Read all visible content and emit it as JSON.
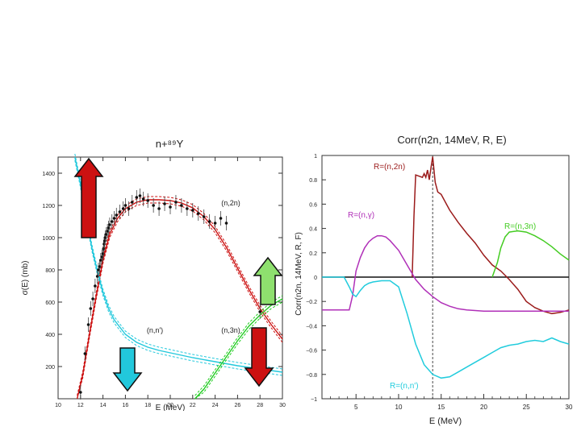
{
  "chart_data": [
    {
      "type": "line",
      "title": "n+⁸⁹Y",
      "xlabel": "E (MeV)",
      "ylabel": "σ(E) (mb)",
      "xlim": [
        10,
        30
      ],
      "ylim": [
        0,
        1500
      ],
      "xticks": [
        "10",
        "12",
        "14",
        "16",
        "18",
        "20",
        "22",
        "24",
        "26",
        "28",
        "30"
      ],
      "yticks": [
        "200",
        "400",
        "600",
        "800",
        "1000",
        "1200",
        "1400"
      ],
      "annotations": [
        "(n,2n)",
        "(n,n')",
        "(n,3n)"
      ],
      "series": [
        {
          "name": "(n,2n)",
          "color": "#cc1111",
          "x": [
            11.7,
            12.2,
            12.8,
            13.4,
            14.0,
            14.6,
            15.3,
            16.0,
            17.0,
            18.0,
            19.0,
            20.0,
            21.0,
            22.0,
            23.0,
            24.0,
            25.0,
            26.0,
            27.0,
            28.0,
            29.0,
            30.0
          ],
          "y": [
            0,
            150,
            400,
            640,
            860,
            1020,
            1120,
            1180,
            1220,
            1235,
            1235,
            1230,
            1215,
            1185,
            1130,
            1050,
            940,
            810,
            680,
            560,
            460,
            370
          ]
        },
        {
          "name": "(n,n')",
          "color": "#22c8dc",
          "x": [
            11.5,
            12.0,
            12.5,
            13.0,
            13.5,
            14.0,
            14.5,
            15.0,
            16.0,
            17.0,
            18.0,
            19.0,
            20.0,
            22.0,
            24.0,
            26.0,
            28.0,
            30.0
          ],
          "y": [
            1500,
            1330,
            1130,
            940,
            790,
            660,
            560,
            490,
            400,
            350,
            320,
            300,
            285,
            255,
            230,
            205,
            185,
            165
          ]
        },
        {
          "name": "(n,3n)",
          "color": "#22cc22",
          "x": [
            22.2,
            23.0,
            24.0,
            25.0,
            26.0,
            27.0,
            28.0,
            29.0,
            30.0
          ],
          "y": [
            0,
            60,
            160,
            260,
            360,
            450,
            520,
            580,
            620
          ]
        }
      ],
      "points": {
        "color": "#111111",
        "x": [
          12.0,
          12.4,
          12.7,
          12.9,
          13.1,
          13.3,
          13.5,
          13.6,
          13.7,
          13.8,
          13.9,
          14.0,
          14.05,
          14.1,
          14.15,
          14.2,
          14.3,
          14.4,
          14.5,
          14.6,
          14.8,
          15.0,
          15.2,
          15.5,
          15.8,
          16.0,
          16.3,
          16.6,
          17.0,
          17.3,
          17.6,
          18.0,
          18.5,
          19.0,
          19.5,
          20.0,
          20.5,
          21.0,
          21.5,
          22.0,
          22.5,
          23.0,
          23.5,
          24.0,
          24.5,
          25.0,
          28.0
        ],
        "y": [
          40,
          280,
          460,
          560,
          620,
          700,
          760,
          800,
          820,
          860,
          880,
          900,
          930,
          960,
          980,
          1000,
          1020,
          1040,
          1060,
          1080,
          1100,
          1120,
          1140,
          1160,
          1180,
          1200,
          1180,
          1220,
          1250,
          1260,
          1240,
          1230,
          1200,
          1180,
          1210,
          1190,
          1220,
          1200,
          1180,
          1170,
          1150,
          1130,
          1100,
          1090,
          1120,
          1090,
          540
        ]
      },
      "arrows": [
        {
          "direction": "up",
          "color": "#cc1111"
        },
        {
          "direction": "down",
          "color": "#22c8dc"
        },
        {
          "direction": "up",
          "color": "#8ee06e"
        },
        {
          "direction": "down",
          "color": "#cc1111"
        }
      ]
    },
    {
      "type": "line",
      "title": "Corr(n2n, 14MeV, R, E)",
      "xlabel": "E (MeV)",
      "ylabel": "Corr(n2n, 14MeV, R, F)",
      "xlim": [
        1,
        30
      ],
      "ylim": [
        -1,
        1
      ],
      "xticks": [
        "5",
        "10",
        "15",
        "20",
        "25",
        "30"
      ],
      "yticks": [
        "1",
        "0.8",
        "0.6",
        "0.4",
        "0.2",
        "0",
        "−0.2",
        "−0.4",
        "−0.6",
        "−0.8",
        "−1"
      ],
      "vline_x": 14,
      "hline_y": 0,
      "series": [
        {
          "name": "R=(n,2n)",
          "color": "#9b1b1b",
          "x": [
            11.6,
            11.8,
            12.0,
            12.8,
            13.0,
            13.2,
            13.4,
            13.6,
            13.8,
            14.0,
            14.3,
            14.6,
            15.0,
            16.0,
            17.0,
            18.0,
            19.0,
            20.0,
            21.0,
            22.0,
            23.0,
            24.0,
            25.0,
            26.0,
            27.0,
            28.0,
            29.0,
            30.0
          ],
          "y": [
            0,
            0.5,
            0.84,
            0.82,
            0.85,
            0.82,
            0.88,
            0.8,
            0.9,
            0.99,
            0.78,
            0.7,
            0.68,
            0.55,
            0.45,
            0.36,
            0.28,
            0.18,
            0.1,
            0.05,
            -0.02,
            -0.1,
            -0.2,
            -0.25,
            -0.28,
            -0.3,
            -0.29,
            -0.27
          ]
        },
        {
          "name": "R=(n,γ)",
          "color": "#b030b8",
          "x": [
            1,
            4.2,
            4.6,
            5.0,
            5.5,
            6.0,
            6.5,
            7.0,
            7.5,
            8.0,
            8.5,
            9.0,
            10.0,
            11.0,
            12.0,
            13.0,
            14.0,
            15.0,
            16.0,
            17.0,
            18.0,
            20.0,
            22.0,
            24.0,
            26.0,
            28.0,
            30.0
          ],
          "y": [
            -0.27,
            -0.27,
            -0.15,
            0.05,
            0.16,
            0.24,
            0.29,
            0.32,
            0.34,
            0.34,
            0.33,
            0.3,
            0.22,
            0.1,
            -0.02,
            -0.1,
            -0.16,
            -0.21,
            -0.24,
            -0.26,
            -0.27,
            -0.28,
            -0.28,
            -0.28,
            -0.28,
            -0.28,
            -0.28
          ]
        },
        {
          "name": "R=(n,3n)",
          "color": "#44cc22",
          "x": [
            21.0,
            21.6,
            22.0,
            22.5,
            23.0,
            24.0,
            25.0,
            26.0,
            27.0,
            28.0,
            29.0,
            30.0
          ],
          "y": [
            0,
            0.12,
            0.24,
            0.33,
            0.37,
            0.38,
            0.37,
            0.34,
            0.3,
            0.25,
            0.19,
            0.14
          ]
        },
        {
          "name": "R=(n,n')",
          "color": "#22ccdd",
          "x": [
            1,
            3.6,
            4.2,
            4.6,
            5.0,
            5.5,
            6.0,
            6.5,
            7.0,
            8.0,
            9.0,
            10.0,
            11.0,
            12.0,
            13.0,
            14.0,
            15.0,
            16.0,
            17.0,
            18.0,
            19.0,
            20.0,
            21.0,
            22.0,
            23.0,
            24.0,
            25.0,
            26.0,
            27.0,
            28.0,
            29.0,
            30.0
          ],
          "y": [
            0,
            0,
            -0.08,
            -0.14,
            -0.16,
            -0.11,
            -0.07,
            -0.05,
            -0.04,
            -0.03,
            -0.03,
            -0.08,
            -0.3,
            -0.55,
            -0.72,
            -0.8,
            -0.83,
            -0.82,
            -0.78,
            -0.74,
            -0.7,
            -0.66,
            -0.62,
            -0.58,
            -0.56,
            -0.55,
            -0.53,
            -0.52,
            -0.53,
            -0.5,
            -0.53,
            -0.55
          ]
        }
      ]
    }
  ]
}
